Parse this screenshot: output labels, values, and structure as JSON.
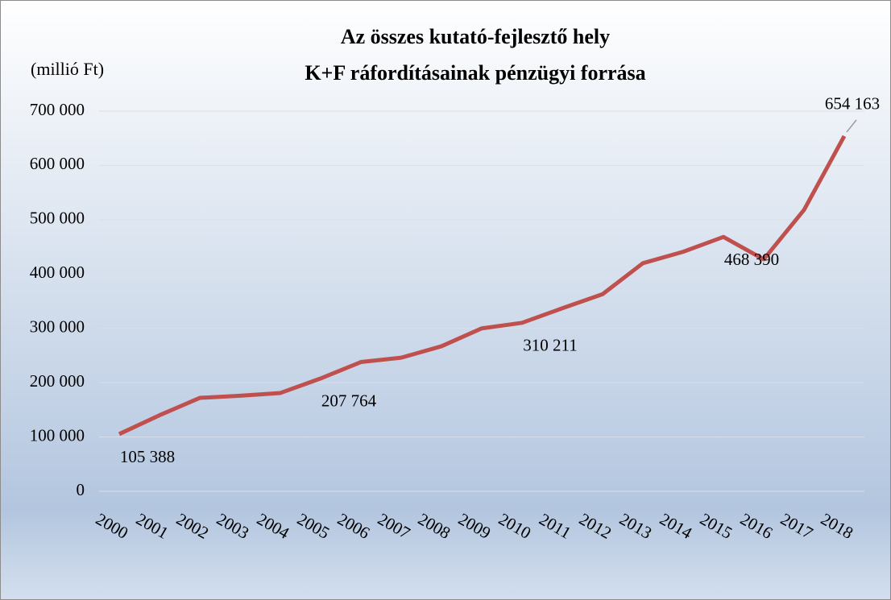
{
  "chart_data": {
    "type": "line",
    "title": "Az összes kutató-fejlesztő hely",
    "subtitle": "K+F ráfordításainak pénzügyi forrása",
    "y_axis_label": "(millió Ft)",
    "categories": [
      "2000",
      "2001",
      "2002",
      "2003",
      "2004",
      "2005",
      "2006",
      "2007",
      "2008",
      "2009",
      "2010",
      "2011",
      "2012",
      "2013",
      "2014",
      "2015",
      "2016",
      "2017",
      "2018"
    ],
    "series": [
      {
        "name": null,
        "color": "#c0504d",
        "values": [
          105388,
          140000,
          172000,
          176000,
          181000,
          207764,
          238000,
          246000,
          267000,
          300000,
          310211,
          337000,
          363000,
          420000,
          441000,
          468390,
          427000,
          518000,
          654163
        ],
        "value_labels": [
          "105 388",
          null,
          null,
          null,
          null,
          "207 764",
          null,
          null,
          null,
          null,
          "310 211",
          null,
          null,
          null,
          null,
          "468 390",
          null,
          null,
          "654 163"
        ]
      }
    ],
    "ylim": [
      0,
      700000
    ],
    "yticks": [
      0,
      {
        "value": 100000,
        "label": "100 000"
      },
      {
        "value": 200000,
        "label": "200 000"
      },
      {
        "value": 300000,
        "label": "300 000"
      },
      {
        "value": 400000,
        "label": "400 000"
      },
      {
        "value": 500000,
        "label": "500 000"
      },
      {
        "value": 600000,
        "label": "600 000"
      },
      {
        "value": 700000,
        "label": "700 000"
      }
    ],
    "grid": true
  }
}
